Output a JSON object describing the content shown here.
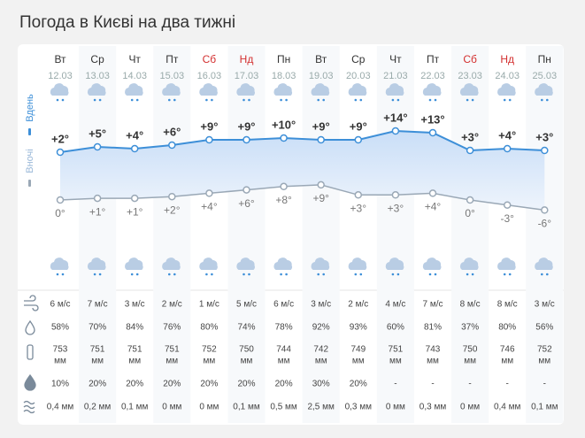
{
  "title": "Погода в Києві на два тижні",
  "side_labels": {
    "day": "Вдень",
    "night": "Вночі"
  },
  "days": [
    {
      "name": "Вт",
      "date": "12.03",
      "name_color": "#333333",
      "day_temp": {
        "value": 2,
        "label": "+2°"
      },
      "night_temp": {
        "value": 0,
        "label": "0°"
      },
      "wind": "6 м/с",
      "humidity": "58%",
      "pressure": "753",
      "pressure_unit": "мм",
      "precip_chance": "10%",
      "precip": "0,4 мм"
    },
    {
      "name": "Ср",
      "date": "13.03",
      "name_color": "#333333",
      "day_temp": {
        "value": 5,
        "label": "+5°"
      },
      "night_temp": {
        "value": 1,
        "label": "+1°"
      },
      "wind": "7 м/с",
      "humidity": "70%",
      "pressure": "751",
      "pressure_unit": "мм",
      "precip_chance": "20%",
      "precip": "0,2 мм"
    },
    {
      "name": "Чт",
      "date": "14.03",
      "name_color": "#333333",
      "day_temp": {
        "value": 4,
        "label": "+4°"
      },
      "night_temp": {
        "value": 1,
        "label": "+1°"
      },
      "wind": "3 м/с",
      "humidity": "84%",
      "pressure": "751",
      "pressure_unit": "мм",
      "precip_chance": "20%",
      "precip": "0,1 мм"
    },
    {
      "name": "Пт",
      "date": "15.03",
      "name_color": "#333333",
      "day_temp": {
        "value": 6,
        "label": "+6°"
      },
      "night_temp": {
        "value": 2,
        "label": "+2°"
      },
      "wind": "2 м/с",
      "humidity": "76%",
      "pressure": "751",
      "pressure_unit": "мм",
      "precip_chance": "20%",
      "precip": "0 мм"
    },
    {
      "name": "Сб",
      "date": "16.03",
      "name_color": "#d32f2f",
      "day_temp": {
        "value": 9,
        "label": "+9°"
      },
      "night_temp": {
        "value": 4,
        "label": "+4°"
      },
      "wind": "1 м/с",
      "humidity": "80%",
      "pressure": "752",
      "pressure_unit": "мм",
      "precip_chance": "20%",
      "precip": "0 мм"
    },
    {
      "name": "Нд",
      "date": "17.03",
      "name_color": "#d32f2f",
      "day_temp": {
        "value": 9,
        "label": "+9°"
      },
      "night_temp": {
        "value": 6,
        "label": "+6°"
      },
      "wind": "5 м/с",
      "humidity": "74%",
      "pressure": "750",
      "pressure_unit": "мм",
      "precip_chance": "20%",
      "precip": "0,1 мм"
    },
    {
      "name": "Пн",
      "date": "18.03",
      "name_color": "#333333",
      "day_temp": {
        "value": 10,
        "label": "+10°"
      },
      "night_temp": {
        "value": 8,
        "label": "+8°"
      },
      "wind": "6 м/с",
      "humidity": "78%",
      "pressure": "744",
      "pressure_unit": "мм",
      "precip_chance": "20%",
      "precip": "0,5 мм"
    },
    {
      "name": "Вт",
      "date": "19.03",
      "name_color": "#333333",
      "day_temp": {
        "value": 9,
        "label": "+9°"
      },
      "night_temp": {
        "value": 9,
        "label": "+9°"
      },
      "wind": "3 м/с",
      "humidity": "92%",
      "pressure": "742",
      "pressure_unit": "мм",
      "precip_chance": "30%",
      "precip": "2,5 мм"
    },
    {
      "name": "Ср",
      "date": "20.03",
      "name_color": "#333333",
      "day_temp": {
        "value": 9,
        "label": "+9°"
      },
      "night_temp": {
        "value": 3,
        "label": "+3°"
      },
      "wind": "2 м/с",
      "humidity": "93%",
      "pressure": "749",
      "pressure_unit": "мм",
      "precip_chance": "20%",
      "precip": "0,3 мм"
    },
    {
      "name": "Чт",
      "date": "21.03",
      "name_color": "#333333",
      "day_temp": {
        "value": 14,
        "label": "+14°"
      },
      "night_temp": {
        "value": 3,
        "label": "+3°"
      },
      "wind": "4 м/с",
      "humidity": "60%",
      "pressure": "751",
      "pressure_unit": "мм",
      "precip_chance": "-",
      "precip": "0 мм"
    },
    {
      "name": "Пт",
      "date": "22.03",
      "name_color": "#333333",
      "day_temp": {
        "value": 13,
        "label": "+13°"
      },
      "night_temp": {
        "value": 4,
        "label": "+4°"
      },
      "wind": "7 м/с",
      "humidity": "81%",
      "pressure": "743",
      "pressure_unit": "мм",
      "precip_chance": "-",
      "precip": "0,3 мм"
    },
    {
      "name": "Сб",
      "date": "23.03",
      "name_color": "#d32f2f",
      "day_temp": {
        "value": 3,
        "label": "+3°"
      },
      "night_temp": {
        "value": 0,
        "label": "0°"
      },
      "wind": "8 м/с",
      "humidity": "37%",
      "pressure": "750",
      "pressure_unit": "мм",
      "precip_chance": "-",
      "precip": "0 мм"
    },
    {
      "name": "Нд",
      "date": "24.03",
      "name_color": "#d32f2f",
      "day_temp": {
        "value": 4,
        "label": "+4°"
      },
      "night_temp": {
        "value": -3,
        "label": "-3°"
      },
      "wind": "8 м/с",
      "humidity": "80%",
      "pressure": "746",
      "pressure_unit": "мм",
      "precip_chance": "-",
      "precip": "0,4 мм"
    },
    {
      "name": "Пн",
      "date": "25.03",
      "name_color": "#333333",
      "day_temp": {
        "value": 3,
        "label": "+3°"
      },
      "night_temp": {
        "value": -6,
        "label": "-6°"
      },
      "wind": "3 м/с",
      "humidity": "56%",
      "pressure": "752",
      "pressure_unit": "мм",
      "precip_chance": "-",
      "precip": "0,1 мм"
    }
  ]
}
